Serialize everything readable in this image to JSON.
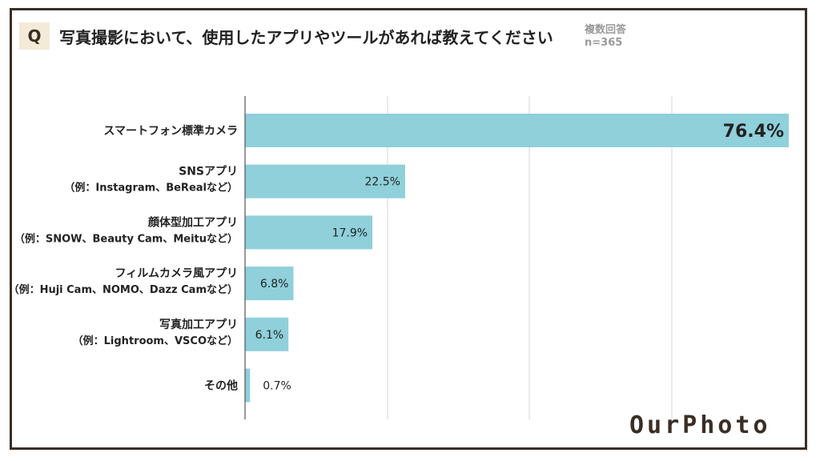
{
  "header": {
    "q_label": "Q",
    "question": "写真撮影において、使用したアプリやツールがあれば教えてください",
    "note_line1": "複数回答",
    "note_line2": "n=365"
  },
  "logo_text": "OurPhoto",
  "colors": {
    "bar": "#8fd0db",
    "frame": "#3a2e24",
    "badge_bg": "#f3ead7",
    "grid": "#d4d4d4",
    "axis": "#555555"
  },
  "chart_data": {
    "type": "bar",
    "orientation": "horizontal",
    "categories": [
      [
        "スマートフォン標準カメラ"
      ],
      [
        "SNSアプリ",
        "（例：Instagram、BeRealなど）"
      ],
      [
        "顔体型加工アプリ",
        "（例：SNOW、Beauty Cam、Meituなど）"
      ],
      [
        "フィルムカメラ風アプリ",
        "（例：Huji Cam、NOMO、Dazz Camなど）"
      ],
      [
        "写真加工アプリ",
        "（例：Lightroom、VSCOなど）"
      ],
      [
        "その他"
      ]
    ],
    "values": [
      76.4,
      22.5,
      17.9,
      6.8,
      6.1,
      0.7
    ],
    "value_labels": [
      "76.4%",
      "22.5%",
      "17.9%",
      "6.8%",
      "6.1%",
      "0.7%"
    ],
    "unit": "%",
    "xlim": [
      0,
      76.4
    ],
    "grid": true,
    "legend": "none"
  }
}
